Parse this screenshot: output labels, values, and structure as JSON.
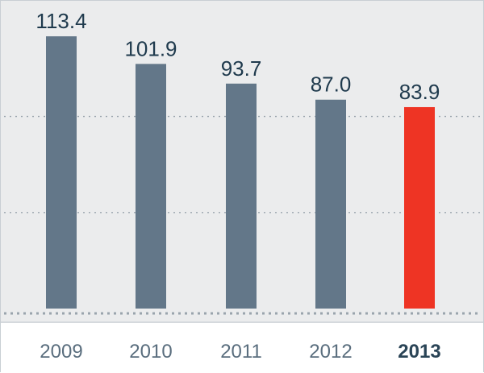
{
  "chart_data": {
    "type": "bar",
    "categories": [
      "2009",
      "2010",
      "2011",
      "2012",
      "2013"
    ],
    "values": [
      113.4,
      101.9,
      93.7,
      87.0,
      83.9
    ],
    "value_labels": [
      "113.4",
      "101.9",
      "93.7",
      "87.0",
      "83.9"
    ],
    "highlight_index": 4,
    "title": "",
    "xlabel": "",
    "ylabel": "",
    "ylim": [
      0,
      120
    ],
    "grid": true,
    "gridlines": [
      40,
      80
    ],
    "colors": {
      "bar": "#637789",
      "highlight": "#ee3424",
      "value_text": "#1f3a4d",
      "tick_text": "#5a6e7e",
      "highlight_tick_text": "#2a4456",
      "grid": "#9aa4ad",
      "background": "#ebeced"
    }
  }
}
